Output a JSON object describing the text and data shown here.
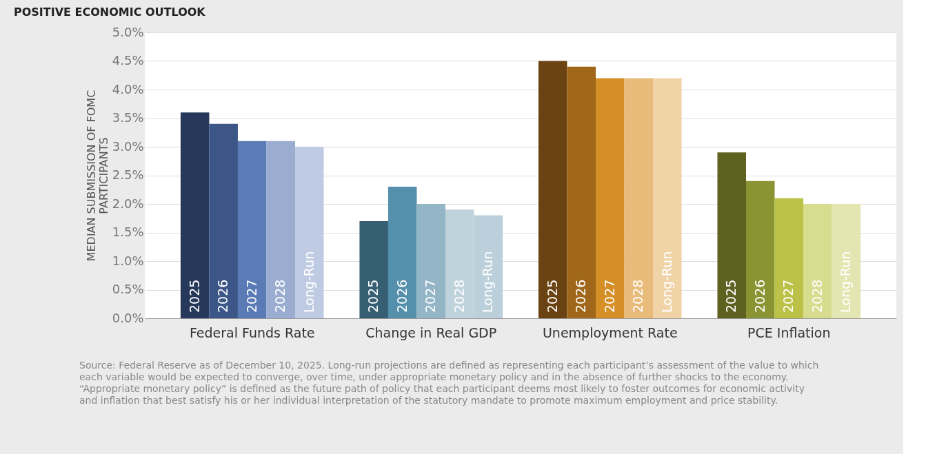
{
  "chart_data": {
    "type": "bar",
    "title": "POSITIVE ECONOMIC OUTLOOK",
    "ylabel": "MEDIAN SUBMISSION OF FOMC PARTICIPANTS",
    "categories": [
      "Federal Funds Rate",
      "Change in Real GDP",
      "Unemployment Rate",
      "PCE Inflation"
    ],
    "series": [
      {
        "name": "2025",
        "colors": [
          "#27395a",
          "#365f73",
          "#6b4212",
          "#5e6120"
        ],
        "values": [
          3.6,
          1.7,
          4.5,
          2.9
        ]
      },
      {
        "name": "2026",
        "colors": [
          "#3b5687",
          "#5490ab",
          "#a0671a",
          "#8a9433"
        ],
        "values": [
          3.4,
          2.3,
          4.4,
          2.4
        ]
      },
      {
        "name": "2027",
        "colors": [
          "#5a7bb5",
          "#93b5c6",
          "#d58f26",
          "#bcc248"
        ],
        "values": [
          3.1,
          2.0,
          4.2,
          2.1
        ]
      },
      {
        "name": "2028",
        "colors": [
          "#9aadd1",
          "#bfd3dd",
          "#e8bb7a",
          "#d8dc8f"
        ],
        "values": [
          3.1,
          1.9,
          4.2,
          2.0
        ]
      },
      {
        "name": "Long-Run",
        "colors": [
          "#bfcbe3",
          "#bcd0db",
          "#f1d3a8",
          "#e4e6b1"
        ],
        "values": [
          3.0,
          1.8,
          4.2,
          2.0
        ]
      }
    ],
    "ylim": [
      0,
      5
    ],
    "yticks": [
      {
        "value": 0,
        "label": "0.0%"
      },
      {
        "value": 0.5,
        "label": "0.5%"
      },
      {
        "value": 1,
        "label": "1.0%"
      },
      {
        "value": 1.5,
        "label": "1.5%"
      },
      {
        "value": 2,
        "label": "2.0%"
      },
      {
        "value": 2.5,
        "label": "2.5%"
      },
      {
        "value": 3,
        "label": "3.0%"
      },
      {
        "value": 3.5,
        "label": "3.5%"
      },
      {
        "value": 4,
        "label": "4.0%"
      },
      {
        "value": 4.5,
        "label": "4.5%"
      },
      {
        "value": 5,
        "label": "5.0%"
      }
    ],
    "grid": "y",
    "annotations": [
      "Source: Federal Reserve as of December 10, 2025. Long-run projections are defined as representing each participant’s assessment of the value to which each variable would be expected to converge, over time, under appropriate monetary policy and in the absence of further shocks to the economy. “Appropriate monetary policy” is defined as the future path of policy that each participant deems most likely to foster outcomes for economic activity and inflation that best satisfy his or her individual interpretation of the statutory mandate to promote maximum employment and price stability."
    ]
  }
}
